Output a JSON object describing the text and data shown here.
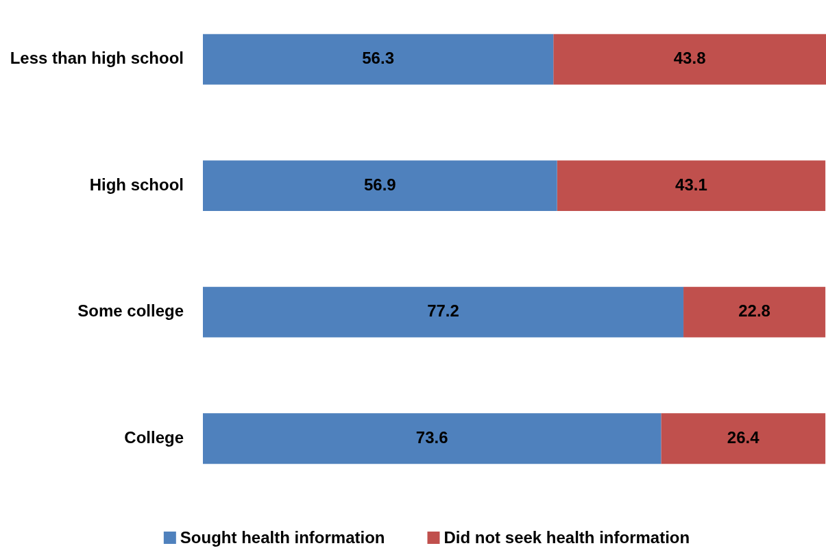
{
  "chart_data": {
    "type": "bar",
    "orientation": "horizontal",
    "stacked": true,
    "categories": [
      "Less than high school",
      "High school",
      "Some college",
      "College"
    ],
    "series": [
      {
        "name": "Sought health information",
        "color": "#4f81bd",
        "values": [
          56.3,
          56.9,
          77.2,
          73.6
        ]
      },
      {
        "name": "Did not seek health information",
        "color": "#c0504d",
        "values": [
          43.8,
          43.1,
          22.8,
          26.4
        ]
      }
    ],
    "data_labels": true,
    "tick_labels": "y",
    "legend": "bottom"
  }
}
